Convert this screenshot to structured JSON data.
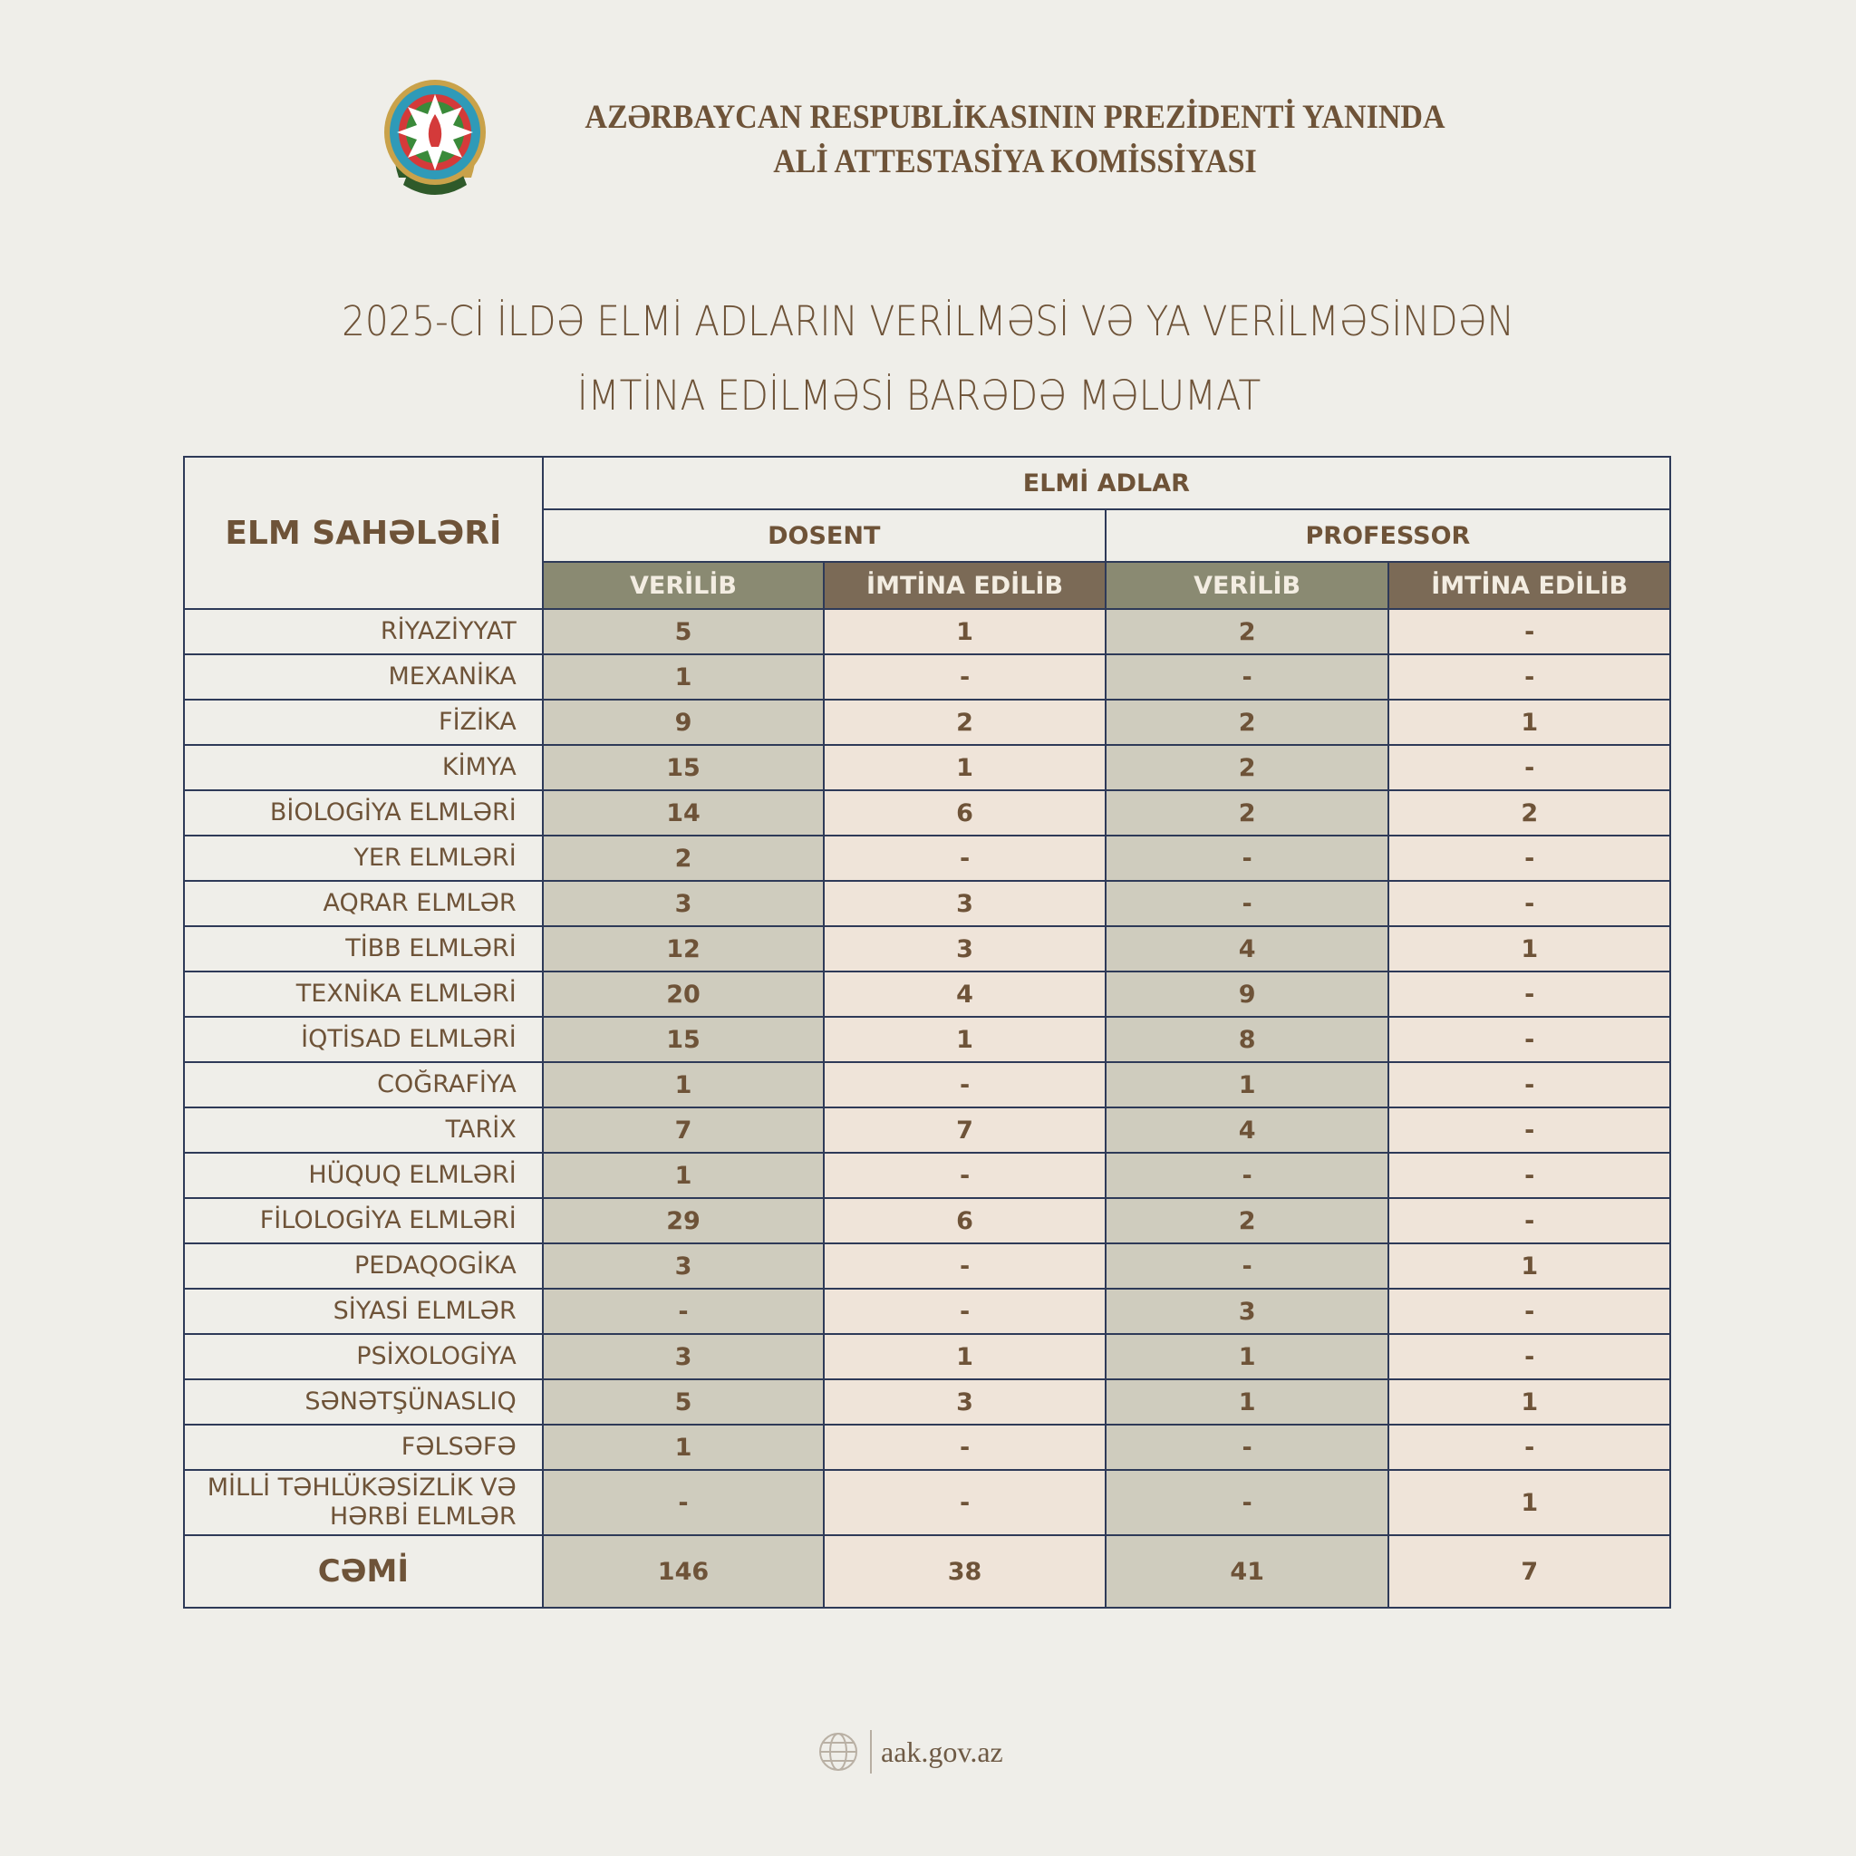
{
  "header": {
    "org_line1": "AZƏRBAYCAN RESPUBLİKASININ PREZİDENTİ YANINDA",
    "org_line2": "ALİ ATTESTASİYA KOMİSSİYASI",
    "logo": "azerbaijan-coat-of-arms"
  },
  "title": {
    "line1": "2025-Cİ İLDƏ ELMİ ADLARIN VERİLMƏSİ VƏ YA VERİLMƏSİNDƏN",
    "line2": "İMTİNA EDİLMƏSİ BARƏDƏ MƏLUMAT"
  },
  "table": {
    "col_field": "ELM SAHƏLƏRİ",
    "group": "ELMİ ADLAR",
    "dosent": "DOSENT",
    "professor": "PROFESSOR",
    "verilib": "VERİLİB",
    "imtina": "İMTİNA EDİLİB",
    "colors": {
      "verilib_header": "#8a8a72",
      "imtina_header": "#7b6a56",
      "verilib_cell": "#cfccbe",
      "imtina_cell": "#efe4d9",
      "border": "#2e3a58",
      "text": "#6e5338"
    },
    "rows": [
      {
        "field": "RİYAZİYYAT",
        "d_v": "5",
        "d_i": "1",
        "p_v": "2",
        "p_i": "-"
      },
      {
        "field": "MEXANİKA",
        "d_v": "1",
        "d_i": "-",
        "p_v": "-",
        "p_i": "-"
      },
      {
        "field": "FİZİKA",
        "d_v": "9",
        "d_i": "2",
        "p_v": "2",
        "p_i": "1"
      },
      {
        "field": "KİMYA",
        "d_v": "15",
        "d_i": "1",
        "p_v": "2",
        "p_i": "-"
      },
      {
        "field": "BİOLOGİYA ELMLƏRİ",
        "d_v": "14",
        "d_i": "6",
        "p_v": "2",
        "p_i": "2"
      },
      {
        "field": "YER ELMLƏRİ",
        "d_v": "2",
        "d_i": "-",
        "p_v": "-",
        "p_i": "-"
      },
      {
        "field": "AQRAR ELMLƏR",
        "d_v": "3",
        "d_i": "3",
        "p_v": "-",
        "p_i": "-"
      },
      {
        "field": "TİBB ELMLƏRİ",
        "d_v": "12",
        "d_i": "3",
        "p_v": "4",
        "p_i": "1"
      },
      {
        "field": "TEXNİKA ELMLƏRİ",
        "d_v": "20",
        "d_i": "4",
        "p_v": "9",
        "p_i": "-"
      },
      {
        "field": "İQTİSAD ELMLƏRİ",
        "d_v": "15",
        "d_i": "1",
        "p_v": "8",
        "p_i": "-"
      },
      {
        "field": "COĞRAFİYA",
        "d_v": "1",
        "d_i": "-",
        "p_v": "1",
        "p_i": "-"
      },
      {
        "field": "TARİX",
        "d_v": "7",
        "d_i": "7",
        "p_v": "4",
        "p_i": "-"
      },
      {
        "field": "HÜQUQ ELMLƏRİ",
        "d_v": "1",
        "d_i": "-",
        "p_v": "-",
        "p_i": "-"
      },
      {
        "field": "FİLOLOGİYA ELMLƏRİ",
        "d_v": "29",
        "d_i": "6",
        "p_v": "2",
        "p_i": "-"
      },
      {
        "field": "PEDAQOGİKA",
        "d_v": "3",
        "d_i": "-",
        "p_v": "-",
        "p_i": "1"
      },
      {
        "field": "SİYASİ ELMLƏR",
        "d_v": "-",
        "d_i": "-",
        "p_v": "3",
        "p_i": "-"
      },
      {
        "field": "PSİXOLOGİYA",
        "d_v": "3",
        "d_i": "1",
        "p_v": "1",
        "p_i": "-"
      },
      {
        "field": "SƏNƏTŞÜNASLIQ",
        "d_v": "5",
        "d_i": "3",
        "p_v": "1",
        "p_i": "1"
      },
      {
        "field": "FƏLSƏFƏ",
        "d_v": "1",
        "d_i": "-",
        "p_v": "-",
        "p_i": "-"
      },
      {
        "field": "MİLLİ TƏHLÜKƏSİZLİK VƏ HƏRBİ ELMLƏR",
        "d_v": "-",
        "d_i": "-",
        "p_v": "-",
        "p_i": "1"
      }
    ],
    "total": {
      "field": "CƏMİ",
      "d_v": "146",
      "d_i": "38",
      "p_v": "41",
      "p_i": "7"
    }
  },
  "footer": {
    "url": "aak.gov.az",
    "icon": "globe-icon"
  }
}
